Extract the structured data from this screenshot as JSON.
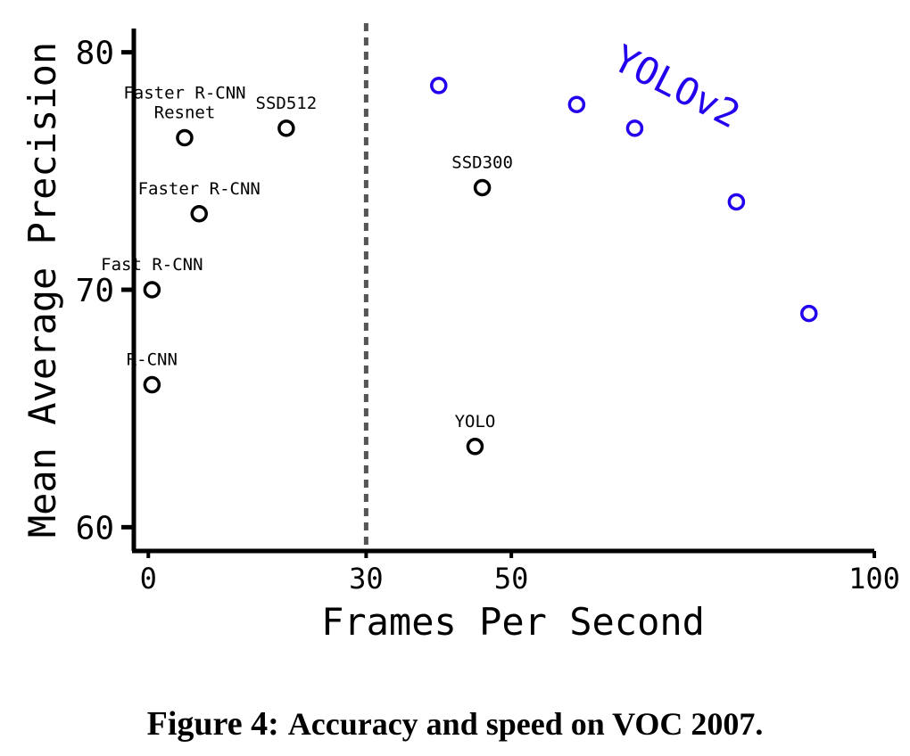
{
  "chart_data": {
    "type": "scatter",
    "xlabel": "Frames Per Second",
    "ylabel": "Mean Average Precision",
    "xlim": [
      -2,
      100
    ],
    "ylim": [
      59,
      81
    ],
    "x_ticks": [
      {
        "value": 0,
        "label": "0"
      },
      {
        "value": 30,
        "label": "30"
      },
      {
        "value": 50,
        "label": "50"
      },
      {
        "value": 100,
        "label": "100"
      }
    ],
    "y_ticks": [
      {
        "value": 60,
        "label": "60"
      },
      {
        "value": 70,
        "label": "70"
      },
      {
        "value": 80,
        "label": "80"
      }
    ],
    "reference_line": {
      "x": 30,
      "style": "dashed",
      "color": "#555555"
    },
    "grid": false,
    "series": [
      {
        "color": "#000000",
        "points": [
          {
            "x": 0.5,
            "y": 66.0,
            "label": "R-CNN"
          },
          {
            "x": 0.5,
            "y": 70.0,
            "label": "Fast R-CNN"
          },
          {
            "x": 7,
            "y": 73.2,
            "label": "Faster R-CNN"
          },
          {
            "x": 5,
            "y": 76.4,
            "label": "Faster R-CNN\nResnet"
          },
          {
            "x": 19,
            "y": 76.8,
            "label": "SSD512"
          },
          {
            "x": 46,
            "y": 74.3,
            "label": "SSD300"
          },
          {
            "x": 45,
            "y": 63.4,
            "label": "YOLO"
          }
        ]
      },
      {
        "color": "#2200ee",
        "label": "YOLOv2",
        "points": [
          {
            "x": 40,
            "y": 78.6
          },
          {
            "x": 59,
            "y": 77.8
          },
          {
            "x": 67,
            "y": 76.8
          },
          {
            "x": 81,
            "y": 73.7
          },
          {
            "x": 91,
            "y": 69.0
          }
        ]
      }
    ]
  },
  "caption": {
    "lead": "Figure 4:",
    "text": "Accuracy and speed on VOC 2007."
  }
}
